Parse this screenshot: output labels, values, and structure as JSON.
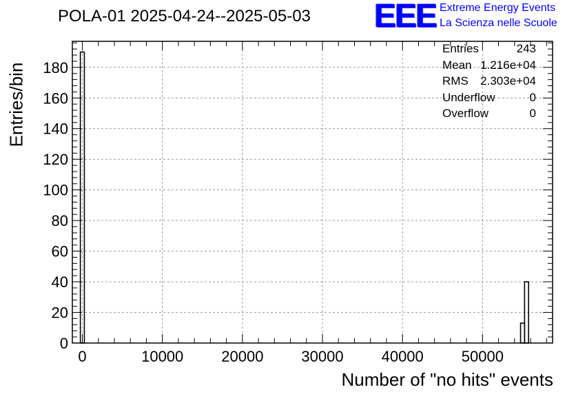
{
  "chart_data": {
    "type": "bar",
    "title": "POLA-01 2025-04-24--2025-05-03",
    "xlabel": "Number of \"no hits\" events",
    "ylabel": "Entries/bin",
    "xlim": [
      -1250,
      58750
    ],
    "ylim": [
      0,
      197
    ],
    "bin_width": 500,
    "grid": true,
    "x_ticks": [
      0,
      10000,
      20000,
      30000,
      40000,
      50000
    ],
    "y_ticks": [
      0,
      20,
      40,
      60,
      80,
      100,
      120,
      140,
      160,
      180
    ],
    "bins": [
      {
        "x_low": -250,
        "x_high": 250,
        "value": 190
      },
      {
        "x_low": 54750,
        "x_high": 55250,
        "value": 13
      },
      {
        "x_low": 55250,
        "x_high": 55750,
        "value": 40
      }
    ],
    "stats": [
      {
        "key": "Entries",
        "value": "243"
      },
      {
        "key": "Mean",
        "value": "1.216e+04"
      },
      {
        "key": "RMS",
        "value": "2.303e+04"
      },
      {
        "key": "Underflow",
        "value": "0"
      },
      {
        "key": "Overflow",
        "value": "0"
      }
    ]
  },
  "logo": {
    "text": "EEE",
    "line1": "Extreme Energy Events",
    "line2": "La Scienza nelle Scuole"
  },
  "colors": {
    "logo": "#0000ff",
    "grid": "#999999",
    "axis": "#000000"
  }
}
